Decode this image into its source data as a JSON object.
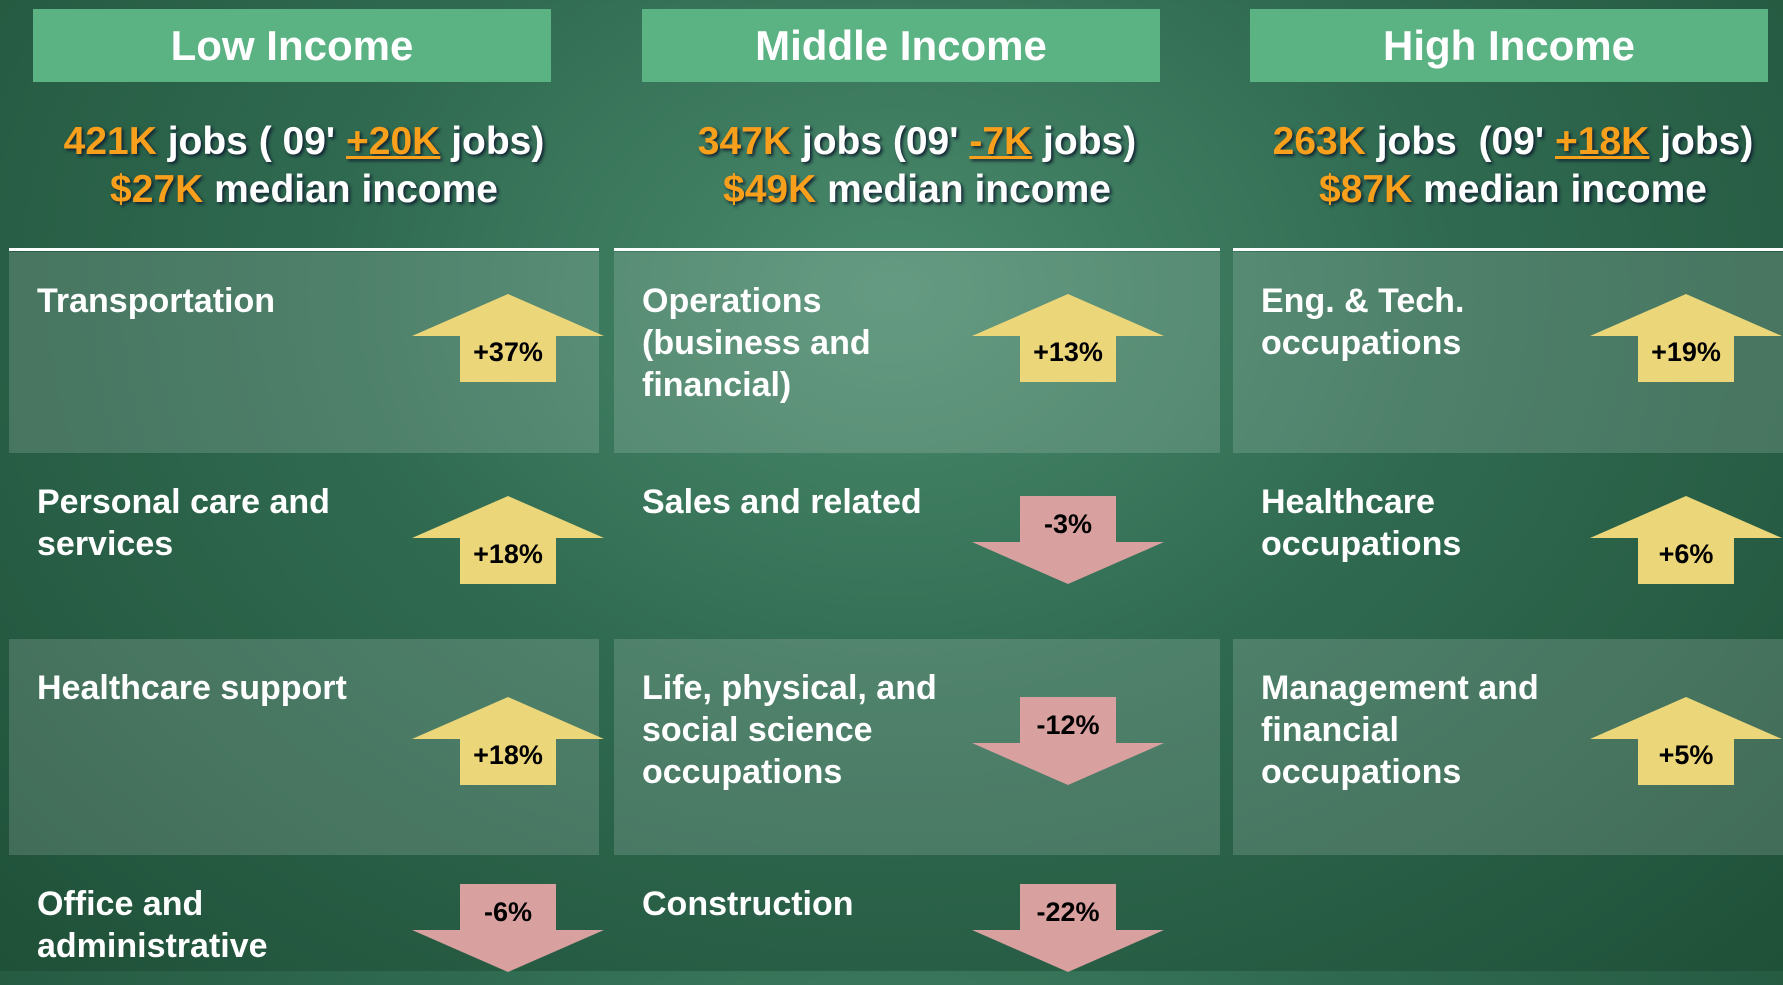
{
  "columns": [
    {
      "title": "Low Income",
      "jobs": "421K",
      "jobs_text": "jobs ( 09'",
      "change": "+20K",
      "change_text": "jobs)",
      "income": "$27K",
      "income_text": "median income",
      "rows": [
        {
          "label": [
            "Transportation"
          ],
          "change": "+37%",
          "direction": "up"
        },
        {
          "label": [
            "Personal care and",
            "services"
          ],
          "change": "+18%",
          "direction": "up"
        },
        {
          "label": [
            "Healthcare support"
          ],
          "change": "+18%",
          "direction": "up"
        },
        {
          "label": [
            "Office and",
            "administrative"
          ],
          "change": "-6%",
          "direction": "down"
        }
      ]
    },
    {
      "title": "Middle Income",
      "jobs": "347K",
      "jobs_text": "jobs (09'",
      "change": "-7K",
      "change_text": "jobs)",
      "income": "$49K",
      "income_text": "median income",
      "rows": [
        {
          "label": [
            "Operations",
            "(business and",
            "financial)"
          ],
          "change": "+13%",
          "direction": "up"
        },
        {
          "label": [
            "Sales and related"
          ],
          "change": "-3%",
          "direction": "down"
        },
        {
          "label": [
            "Life, physical, and",
            "social science",
            "occupations"
          ],
          "change": "-12%",
          "direction": "down"
        },
        {
          "label": [
            "Construction"
          ],
          "change": "-22%",
          "direction": "down"
        }
      ]
    },
    {
      "title": "High Income",
      "jobs": "263K",
      "jobs_text": "jobs  (09'",
      "change": "+18K",
      "change_text": "jobs)",
      "income": "$87K",
      "income_text": "median income",
      "rows": [
        {
          "label": [
            "Eng. & Tech.",
            "occupations"
          ],
          "change": "+19%",
          "direction": "up"
        },
        {
          "label": [
            "Healthcare",
            "occupations"
          ],
          "change": "+6%",
          "direction": "up"
        },
        {
          "label": [
            "Management and",
            "financial",
            "occupations"
          ],
          "change": "+5%",
          "direction": "up"
        }
      ]
    }
  ]
}
